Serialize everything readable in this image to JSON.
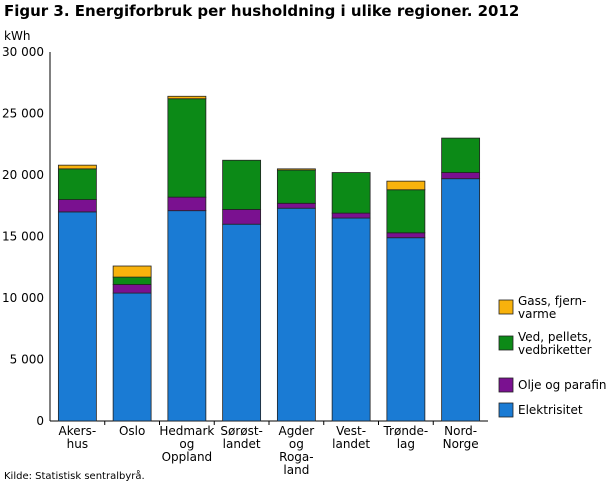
{
  "title": "Figur 3. Energiforbruk per husholdning i ulike regioner. 2012",
  "source": "Kilde: Statistisk sentralbyrå.",
  "chart_data": {
    "type": "bar",
    "stacked": true,
    "title": "Figur 3. Energiforbruk per husholdning i ulike regioner. 2012",
    "ylabel": "kWh",
    "ylim": [
      0,
      30000
    ],
    "yticks": [
      0,
      5000,
      10000,
      15000,
      20000,
      25000,
      30000
    ],
    "ytick_labels": [
      "0",
      "5 000",
      "10 000",
      "15 000",
      "20 000",
      "25 000",
      "30 000"
    ],
    "grid": false,
    "legend_position": "right",
    "categories": [
      [
        "Akers-",
        "hus"
      ],
      [
        "Oslo"
      ],
      [
        "Hedmark",
        "og",
        "Oppland"
      ],
      [
        "Sørøst-",
        "landet"
      ],
      [
        "Agder",
        "og",
        "Roga-",
        "land"
      ],
      [
        "Vest-",
        "landet"
      ],
      [
        "Trønde-",
        "lag"
      ],
      [
        "Nord-",
        "Norge"
      ]
    ],
    "series": [
      {
        "name": "Elektrisitet",
        "color": "#1a7bd4",
        "values": [
          17000,
          10400,
          17100,
          16000,
          17300,
          16500,
          14900,
          19700
        ]
      },
      {
        "name": "Olje og parafin",
        "color": "#7a1190",
        "values": [
          1000,
          700,
          1100,
          1200,
          400,
          400,
          400,
          500
        ]
      },
      {
        "name": "Ved, pellets, vedbriketter",
        "color": "#0c8a17",
        "values": [
          2500,
          600,
          8000,
          4000,
          2700,
          3300,
          3500,
          2800
        ]
      },
      {
        "name": "Gass, fjern- varme",
        "color": "#f8b20c",
        "values": [
          300,
          900,
          200,
          0,
          100,
          0,
          700,
          0
        ]
      }
    ],
    "legend": [
      {
        "lines": [
          "Gass, fjern-",
          "varme"
        ],
        "color": "#f8b20c"
      },
      {
        "lines": [
          "Ved, pellets,",
          "vedbriketter"
        ],
        "color": "#0c8a17"
      },
      {
        "lines": [
          "Olje og parafin"
        ],
        "color": "#7a1190"
      },
      {
        "lines": [
          "Elektrisitet"
        ],
        "color": "#1a7bd4"
      }
    ]
  }
}
